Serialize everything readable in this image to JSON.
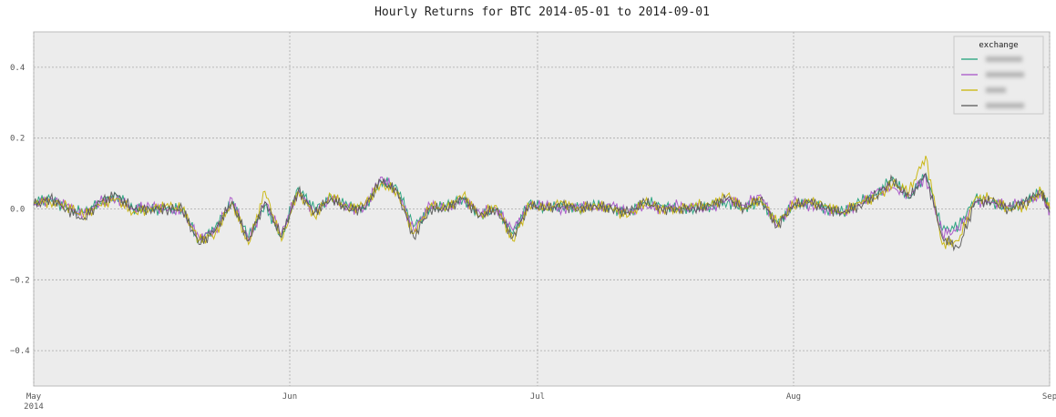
{
  "chart_data": {
    "type": "line",
    "title": "Hourly Returns for BTC 2014-05-01 to 2014-09-01",
    "xlabel": "",
    "ylabel": "",
    "x_range": [
      "2014-05-01",
      "2014-09-01"
    ],
    "ylim": [
      -0.5,
      0.5
    ],
    "y_ticks": [
      {
        "value": 0.4,
        "label": "0.4"
      },
      {
        "value": 0.2,
        "label": "0.2"
      },
      {
        "value": 0.0,
        "label": "0.0"
      },
      {
        "value": -0.2,
        "label": "−0.2"
      },
      {
        "value": -0.4,
        "label": "−0.4"
      }
    ],
    "x_ticks": [
      {
        "date": "2014-05-01",
        "label": "May",
        "sublabel": "2014"
      },
      {
        "date": "2014-06-01",
        "label": "Jun",
        "sublabel": ""
      },
      {
        "date": "2014-07-01",
        "label": "Jul",
        "sublabel": ""
      },
      {
        "date": "2014-08-01",
        "label": "Aug",
        "sublabel": ""
      },
      {
        "date": "2014-09-01",
        "label": "Sep",
        "sublabel": ""
      }
    ],
    "grid": true,
    "legend": {
      "title": "exchange",
      "placement": "top-right",
      "entries_redacted": true
    },
    "background": "#ececec",
    "series": [
      {
        "color": "#1b9e77",
        "values": [
          [
            "2014-05-01",
            0.02
          ],
          [
            "2014-05-03",
            0.03
          ],
          [
            "2014-05-05",
            0.0
          ],
          [
            "2014-05-07",
            -0.01
          ],
          [
            "2014-05-09",
            0.02
          ],
          [
            "2014-05-11",
            0.04
          ],
          [
            "2014-05-13",
            0.0
          ],
          [
            "2014-05-15",
            0.0
          ],
          [
            "2014-05-17",
            0.0
          ],
          [
            "2014-05-19",
            0.0
          ],
          [
            "2014-05-21",
            -0.09
          ],
          [
            "2014-05-23",
            -0.05
          ],
          [
            "2014-05-25",
            0.02
          ],
          [
            "2014-05-27",
            -0.08
          ],
          [
            "2014-05-29",
            0.01
          ],
          [
            "2014-05-31",
            -0.08
          ],
          [
            "2014-06-02",
            0.06
          ],
          [
            "2014-06-04",
            0.0
          ],
          [
            "2014-06-06",
            0.03
          ],
          [
            "2014-06-08",
            0.01
          ],
          [
            "2014-06-10",
            0.0
          ],
          [
            "2014-06-12",
            0.08
          ],
          [
            "2014-06-14",
            0.06
          ],
          [
            "2014-06-16",
            -0.05
          ],
          [
            "2014-06-18",
            0.0
          ],
          [
            "2014-06-20",
            0.01
          ],
          [
            "2014-06-22",
            0.03
          ],
          [
            "2014-06-24",
            -0.02
          ],
          [
            "2014-06-26",
            0.0
          ],
          [
            "2014-06-28",
            -0.07
          ],
          [
            "2014-06-30",
            0.02
          ],
          [
            "2014-07-02",
            0.0
          ],
          [
            "2014-07-04",
            0.01
          ],
          [
            "2014-07-06",
            0.0
          ],
          [
            "2014-07-08",
            0.01
          ],
          [
            "2014-07-10",
            0.0
          ],
          [
            "2014-07-12",
            -0.01
          ],
          [
            "2014-07-14",
            0.02
          ],
          [
            "2014-07-16",
            0.01
          ],
          [
            "2014-07-18",
            0.0
          ],
          [
            "2014-07-20",
            0.0
          ],
          [
            "2014-07-22",
            0.01
          ],
          [
            "2014-07-24",
            0.02
          ],
          [
            "2014-07-26",
            0.0
          ],
          [
            "2014-07-28",
            0.02
          ],
          [
            "2014-07-30",
            -0.04
          ],
          [
            "2014-08-01",
            0.01
          ],
          [
            "2014-08-03",
            0.02
          ],
          [
            "2014-08-05",
            0.0
          ],
          [
            "2014-08-07",
            -0.01
          ],
          [
            "2014-08-09",
            0.02
          ],
          [
            "2014-08-11",
            0.04
          ],
          [
            "2014-08-13",
            0.09
          ],
          [
            "2014-08-15",
            0.03
          ],
          [
            "2014-08-17",
            0.1
          ],
          [
            "2014-08-19",
            -0.06
          ],
          [
            "2014-08-21",
            -0.05
          ],
          [
            "2014-08-23",
            0.03
          ],
          [
            "2014-08-25",
            0.02
          ],
          [
            "2014-08-27",
            0.0
          ],
          [
            "2014-08-29",
            0.02
          ],
          [
            "2014-08-31",
            0.05
          ],
          [
            "2014-09-01",
            0.0
          ]
        ]
      },
      {
        "color": "#a64fc7",
        "values": [
          [
            "2014-05-01",
            0.01
          ],
          [
            "2014-05-03",
            0.03
          ],
          [
            "2014-05-05",
            0.01
          ],
          [
            "2014-05-07",
            -0.02
          ],
          [
            "2014-05-09",
            0.02
          ],
          [
            "2014-05-11",
            0.03
          ],
          [
            "2014-05-13",
            0.0
          ],
          [
            "2014-05-15",
            0.01
          ],
          [
            "2014-05-17",
            0.0
          ],
          [
            "2014-05-19",
            -0.01
          ],
          [
            "2014-05-21",
            -0.08
          ],
          [
            "2014-05-23",
            -0.06
          ],
          [
            "2014-05-25",
            0.03
          ],
          [
            "2014-05-27",
            -0.09
          ],
          [
            "2014-05-29",
            0.02
          ],
          [
            "2014-05-31",
            -0.07
          ],
          [
            "2014-06-02",
            0.05
          ],
          [
            "2014-06-04",
            -0.01
          ],
          [
            "2014-06-06",
            0.03
          ],
          [
            "2014-06-08",
            0.0
          ],
          [
            "2014-06-10",
            0.0
          ],
          [
            "2014-06-12",
            0.09
          ],
          [
            "2014-06-14",
            0.05
          ],
          [
            "2014-06-16",
            -0.06
          ],
          [
            "2014-06-18",
            0.01
          ],
          [
            "2014-06-20",
            0.0
          ],
          [
            "2014-06-22",
            0.03
          ],
          [
            "2014-06-24",
            -0.01
          ],
          [
            "2014-06-26",
            0.0
          ],
          [
            "2014-06-28",
            -0.06
          ],
          [
            "2014-06-30",
            0.01
          ],
          [
            "2014-07-02",
            0.01
          ],
          [
            "2014-07-04",
            0.0
          ],
          [
            "2014-07-06",
            0.01
          ],
          [
            "2014-07-08",
            0.0
          ],
          [
            "2014-07-10",
            0.01
          ],
          [
            "2014-07-12",
            -0.01
          ],
          [
            "2014-07-14",
            0.01
          ],
          [
            "2014-07-16",
            0.0
          ],
          [
            "2014-07-18",
            0.01
          ],
          [
            "2014-07-20",
            0.0
          ],
          [
            "2014-07-22",
            0.0
          ],
          [
            "2014-07-24",
            0.03
          ],
          [
            "2014-07-26",
            0.01
          ],
          [
            "2014-07-28",
            0.04
          ],
          [
            "2014-07-30",
            -0.05
          ],
          [
            "2014-08-01",
            0.02
          ],
          [
            "2014-08-03",
            0.01
          ],
          [
            "2014-08-05",
            0.0
          ],
          [
            "2014-08-07",
            -0.01
          ],
          [
            "2014-08-09",
            0.01
          ],
          [
            "2014-08-11",
            0.05
          ],
          [
            "2014-08-13",
            0.06
          ],
          [
            "2014-08-15",
            0.04
          ],
          [
            "2014-08-17",
            0.09
          ],
          [
            "2014-08-19",
            -0.07
          ],
          [
            "2014-08-21",
            -0.06
          ],
          [
            "2014-08-23",
            0.02
          ],
          [
            "2014-08-25",
            0.02
          ],
          [
            "2014-08-27",
            0.01
          ],
          [
            "2014-08-29",
            0.02
          ],
          [
            "2014-08-31",
            0.04
          ],
          [
            "2014-09-01",
            -0.01
          ]
        ]
      },
      {
        "color": "#c8b400",
        "values": [
          [
            "2014-05-01",
            0.02
          ],
          [
            "2014-05-03",
            0.02
          ],
          [
            "2014-05-05",
            0.01
          ],
          [
            "2014-05-07",
            -0.02
          ],
          [
            "2014-05-09",
            0.01
          ],
          [
            "2014-05-11",
            0.03
          ],
          [
            "2014-05-13",
            -0.01
          ],
          [
            "2014-05-15",
            0.0
          ],
          [
            "2014-05-17",
            0.01
          ],
          [
            "2014-05-19",
            0.0
          ],
          [
            "2014-05-21",
            -0.09
          ],
          [
            "2014-05-23",
            -0.07
          ],
          [
            "2014-05-25",
            0.02
          ],
          [
            "2014-05-27",
            -0.1
          ],
          [
            "2014-05-29",
            0.05
          ],
          [
            "2014-05-31",
            -0.09
          ],
          [
            "2014-06-02",
            0.05
          ],
          [
            "2014-06-04",
            -0.02
          ],
          [
            "2014-06-06",
            0.04
          ],
          [
            "2014-06-08",
            0.0
          ],
          [
            "2014-06-10",
            0.01
          ],
          [
            "2014-06-12",
            0.07
          ],
          [
            "2014-06-14",
            0.05
          ],
          [
            "2014-06-16",
            -0.07
          ],
          [
            "2014-06-18",
            0.01
          ],
          [
            "2014-06-20",
            0.0
          ],
          [
            "2014-06-22",
            0.04
          ],
          [
            "2014-06-24",
            -0.02
          ],
          [
            "2014-06-26",
            0.01
          ],
          [
            "2014-06-28",
            -0.09
          ],
          [
            "2014-06-30",
            0.01
          ],
          [
            "2014-07-02",
            0.0
          ],
          [
            "2014-07-04",
            0.02
          ],
          [
            "2014-07-06",
            0.0
          ],
          [
            "2014-07-08",
            0.01
          ],
          [
            "2014-07-10",
            0.0
          ],
          [
            "2014-07-12",
            -0.02
          ],
          [
            "2014-07-14",
            0.02
          ],
          [
            "2014-07-16",
            0.0
          ],
          [
            "2014-07-18",
            0.0
          ],
          [
            "2014-07-20",
            0.01
          ],
          [
            "2014-07-22",
            0.01
          ],
          [
            "2014-07-24",
            0.04
          ],
          [
            "2014-07-26",
            0.0
          ],
          [
            "2014-07-28",
            0.03
          ],
          [
            "2014-07-30",
            -0.04
          ],
          [
            "2014-08-01",
            0.01
          ],
          [
            "2014-08-03",
            0.02
          ],
          [
            "2014-08-05",
            0.01
          ],
          [
            "2014-08-07",
            -0.01
          ],
          [
            "2014-08-09",
            0.02
          ],
          [
            "2014-08-11",
            0.03
          ],
          [
            "2014-08-13",
            0.07
          ],
          [
            "2014-08-15",
            0.05
          ],
          [
            "2014-08-17",
            0.15
          ],
          [
            "2014-08-19",
            -0.1
          ],
          [
            "2014-08-21",
            -0.09
          ],
          [
            "2014-08-23",
            0.03
          ],
          [
            "2014-08-25",
            0.03
          ],
          [
            "2014-08-27",
            0.0
          ],
          [
            "2014-08-29",
            0.01
          ],
          [
            "2014-08-31",
            0.05
          ],
          [
            "2014-09-01",
            0.0
          ]
        ]
      },
      {
        "color": "#555555",
        "values": [
          [
            "2014-05-01",
            0.01
          ],
          [
            "2014-05-03",
            0.03
          ],
          [
            "2014-05-05",
            0.0
          ],
          [
            "2014-05-07",
            -0.03
          ],
          [
            "2014-05-09",
            0.02
          ],
          [
            "2014-05-11",
            0.04
          ],
          [
            "2014-05-13",
            0.0
          ],
          [
            "2014-05-15",
            0.0
          ],
          [
            "2014-05-17",
            0.0
          ],
          [
            "2014-05-19",
            0.0
          ],
          [
            "2014-05-21",
            -0.1
          ],
          [
            "2014-05-23",
            -0.06
          ],
          [
            "2014-05-25",
            0.02
          ],
          [
            "2014-05-27",
            -0.09
          ],
          [
            "2014-05-29",
            0.02
          ],
          [
            "2014-05-31",
            -0.08
          ],
          [
            "2014-06-02",
            0.05
          ],
          [
            "2014-06-04",
            -0.01
          ],
          [
            "2014-06-06",
            0.03
          ],
          [
            "2014-06-08",
            0.0
          ],
          [
            "2014-06-10",
            0.0
          ],
          [
            "2014-06-12",
            0.08
          ],
          [
            "2014-06-14",
            0.05
          ],
          [
            "2014-06-16",
            -0.08
          ],
          [
            "2014-06-18",
            0.0
          ],
          [
            "2014-06-20",
            0.0
          ],
          [
            "2014-06-22",
            0.03
          ],
          [
            "2014-06-24",
            -0.02
          ],
          [
            "2014-06-26",
            0.0
          ],
          [
            "2014-06-28",
            -0.08
          ],
          [
            "2014-06-30",
            0.01
          ],
          [
            "2014-07-02",
            0.0
          ],
          [
            "2014-07-04",
            0.01
          ],
          [
            "2014-07-06",
            0.0
          ],
          [
            "2014-07-08",
            0.01
          ],
          [
            "2014-07-10",
            0.0
          ],
          [
            "2014-07-12",
            -0.01
          ],
          [
            "2014-07-14",
            0.02
          ],
          [
            "2014-07-16",
            0.0
          ],
          [
            "2014-07-18",
            0.0
          ],
          [
            "2014-07-20",
            0.0
          ],
          [
            "2014-07-22",
            0.01
          ],
          [
            "2014-07-24",
            0.03
          ],
          [
            "2014-07-26",
            0.0
          ],
          [
            "2014-07-28",
            0.03
          ],
          [
            "2014-07-30",
            -0.05
          ],
          [
            "2014-08-01",
            0.01
          ],
          [
            "2014-08-03",
            0.02
          ],
          [
            "2014-08-05",
            0.0
          ],
          [
            "2014-08-07",
            -0.01
          ],
          [
            "2014-08-09",
            0.01
          ],
          [
            "2014-08-11",
            0.04
          ],
          [
            "2014-08-13",
            0.08
          ],
          [
            "2014-08-15",
            0.03
          ],
          [
            "2014-08-17",
            0.1
          ],
          [
            "2014-08-19",
            -0.08
          ],
          [
            "2014-08-21",
            -0.11
          ],
          [
            "2014-08-23",
            0.02
          ],
          [
            "2014-08-25",
            0.02
          ],
          [
            "2014-08-27",
            0.0
          ],
          [
            "2014-08-29",
            0.02
          ],
          [
            "2014-08-31",
            0.05
          ],
          [
            "2014-09-01",
            -0.01
          ]
        ]
      }
    ]
  }
}
